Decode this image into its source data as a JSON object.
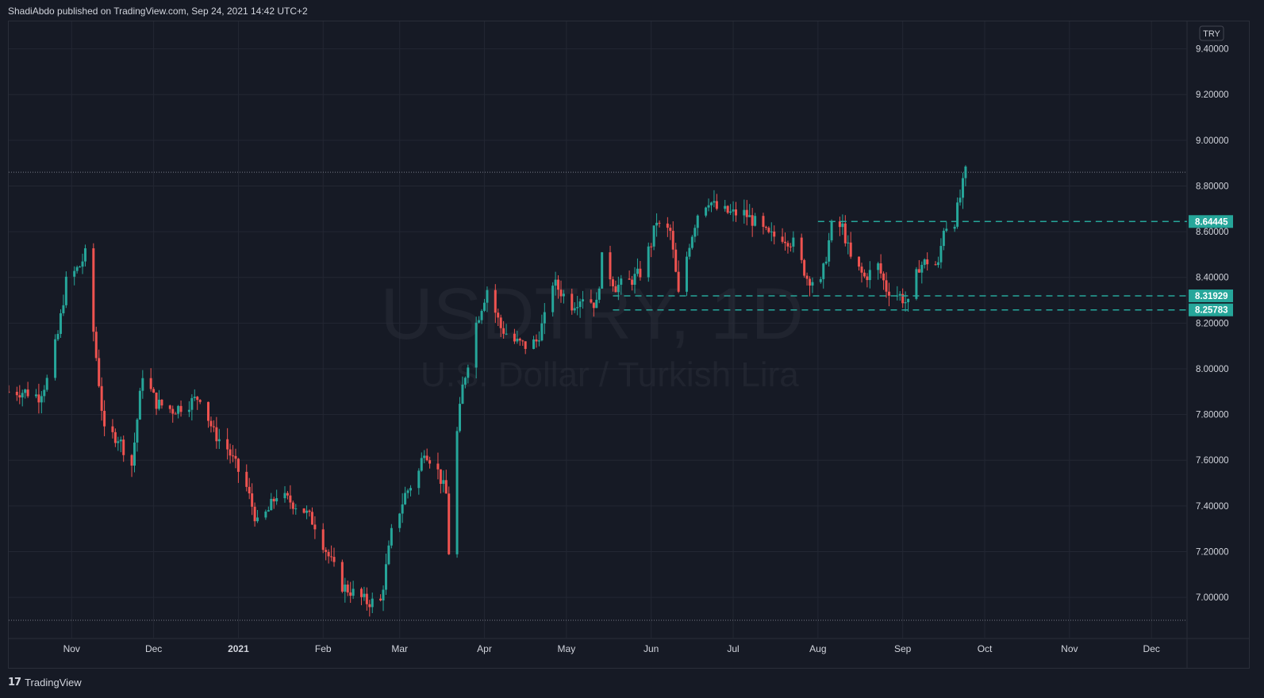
{
  "header": {
    "published": "ShadiAbdo published on TradingView.com, Sep 24, 2021 14:42 UTC+2"
  },
  "footer": {
    "brand": "TradingView",
    "logo_icon": "tradingview-logo-icon"
  },
  "colors": {
    "background": "#161a25",
    "grid": "#232733",
    "up": "#26a69a",
    "down": "#ef5350",
    "level": "#26a69a",
    "text": "#d1d4dc",
    "watermark": "#2a2e39"
  },
  "chart_data": {
    "type": "candlestick",
    "symbol_watermark": "USDTRY, 1D",
    "name_watermark": "U.S. Dollar / Turkish Lira",
    "currency_badge": "TRY",
    "y_ticks": [
      "9.40000",
      "9.20000",
      "9.00000",
      "8.80000",
      "8.60000",
      "8.40000",
      "8.20000",
      "8.00000",
      "7.80000",
      "7.60000",
      "7.40000",
      "7.20000",
      "7.00000"
    ],
    "ylim": [
      6.82,
      9.52
    ],
    "x_ticks": [
      "Nov",
      "Dec",
      "2021",
      "Feb",
      "Mar",
      "Apr",
      "May",
      "Jun",
      "Jul",
      "Aug",
      "Sep",
      "Oct",
      "Nov",
      "Dec"
    ],
    "x_tick_dates": [
      "2020-11-01",
      "2020-12-01",
      "2021-01-01",
      "2021-02-01",
      "2021-03-01",
      "2021-04-01",
      "2021-05-01",
      "2021-06-01",
      "2021-07-01",
      "2021-08-01",
      "2021-09-01",
      "2021-10-01",
      "2021-11-01",
      "2021-12-01"
    ],
    "xlim": [
      "2020-10-09",
      "2021-12-14"
    ],
    "horizontal_levels": [
      {
        "label": "8.64445",
        "value": 8.64445,
        "from": "2021-08-01"
      },
      {
        "label": "8.31929",
        "value": 8.31929,
        "from": "2021-05-18"
      },
      {
        "label": "8.25783",
        "value": 8.25783,
        "from": "2021-05-18"
      }
    ],
    "price_range_lines": [
      8.86,
      6.9
    ],
    "anchors": [
      [
        "2020-10-09",
        7.9
      ],
      [
        "2020-10-15",
        7.9
      ],
      [
        "2020-10-20",
        7.88
      ],
      [
        "2020-10-23",
        7.95
      ],
      [
        "2020-10-27",
        8.15
      ],
      [
        "2020-10-30",
        8.38
      ],
      [
        "2020-11-04",
        8.45
      ],
      [
        "2020-11-06",
        8.5
      ],
      [
        "2020-11-10",
        8.05
      ],
      [
        "2020-11-13",
        7.72
      ],
      [
        "2020-11-18",
        7.7
      ],
      [
        "2020-11-23",
        7.58
      ],
      [
        "2020-11-27",
        7.98
      ],
      [
        "2020-12-02",
        7.85
      ],
      [
        "2020-12-08",
        7.82
      ],
      [
        "2020-12-14",
        7.85
      ],
      [
        "2020-12-18",
        7.88
      ],
      [
        "2020-12-23",
        7.72
      ],
      [
        "2020-12-28",
        7.65
      ],
      [
        "2021-01-04",
        7.48
      ],
      [
        "2021-01-08",
        7.32
      ],
      [
        "2021-01-12",
        7.38
      ],
      [
        "2021-01-15",
        7.45
      ],
      [
        "2021-01-20",
        7.42
      ],
      [
        "2021-01-25",
        7.38
      ],
      [
        "2021-01-29",
        7.32
      ],
      [
        "2021-02-03",
        7.18
      ],
      [
        "2021-02-08",
        7.05
      ],
      [
        "2021-02-12",
        7.02
      ],
      [
        "2021-02-17",
        6.98
      ],
      [
        "2021-02-22",
        6.98
      ],
      [
        "2021-02-26",
        7.28
      ],
      [
        "2021-03-03",
        7.45
      ],
      [
        "2021-03-08",
        7.55
      ],
      [
        "2021-03-10",
        7.65
      ],
      [
        "2021-03-15",
        7.55
      ],
      [
        "2021-03-18",
        7.45
      ],
      [
        "2021-03-19",
        7.2
      ],
      [
        "2021-03-22",
        7.72
      ],
      [
        "2021-03-24",
        7.92
      ],
      [
        "2021-03-29",
        8.2
      ],
      [
        "2021-04-02",
        8.35
      ],
      [
        "2021-04-07",
        8.18
      ],
      [
        "2021-04-12",
        8.12
      ],
      [
        "2021-04-16",
        8.1
      ],
      [
        "2021-04-20",
        8.12
      ],
      [
        "2021-04-23",
        8.22
      ],
      [
        "2021-04-26",
        8.38
      ],
      [
        "2021-05-03",
        8.28
      ],
      [
        "2021-05-07",
        8.32
      ],
      [
        "2021-05-12",
        8.28
      ],
      [
        "2021-05-14",
        8.48
      ],
      [
        "2021-05-19",
        8.36
      ],
      [
        "2021-05-24",
        8.38
      ],
      [
        "2021-05-28",
        8.42
      ],
      [
        "2021-06-01",
        8.55
      ],
      [
        "2021-06-03",
        8.65
      ],
      [
        "2021-06-04",
        8.62
      ],
      [
        "2021-06-08",
        8.6
      ],
      [
        "2021-06-11",
        8.32
      ],
      [
        "2021-06-15",
        8.55
      ],
      [
        "2021-06-18",
        8.68
      ],
      [
        "2021-06-22",
        8.74
      ],
      [
        "2021-06-25",
        8.7
      ],
      [
        "2021-06-30",
        8.68
      ],
      [
        "2021-07-05",
        8.68
      ],
      [
        "2021-07-09",
        8.64
      ],
      [
        "2021-07-14",
        8.58
      ],
      [
        "2021-07-19",
        8.58
      ],
      [
        "2021-07-23",
        8.55
      ],
      [
        "2021-07-28",
        8.4
      ],
      [
        "2021-08-02",
        8.37
      ],
      [
        "2021-08-06",
        8.62
      ],
      [
        "2021-08-10",
        8.62
      ],
      [
        "2021-08-13",
        8.48
      ],
      [
        "2021-08-18",
        8.4
      ],
      [
        "2021-08-23",
        8.45
      ],
      [
        "2021-08-26",
        8.35
      ],
      [
        "2021-08-31",
        8.32
      ],
      [
        "2021-09-03",
        8.28
      ],
      [
        "2021-09-07",
        8.45
      ],
      [
        "2021-09-10",
        8.47
      ],
      [
        "2021-09-14",
        8.45
      ],
      [
        "2021-09-16",
        8.62
      ],
      [
        "2021-09-20",
        8.65
      ],
      [
        "2021-09-22",
        8.75
      ],
      [
        "2021-09-24",
        8.86
      ]
    ]
  }
}
